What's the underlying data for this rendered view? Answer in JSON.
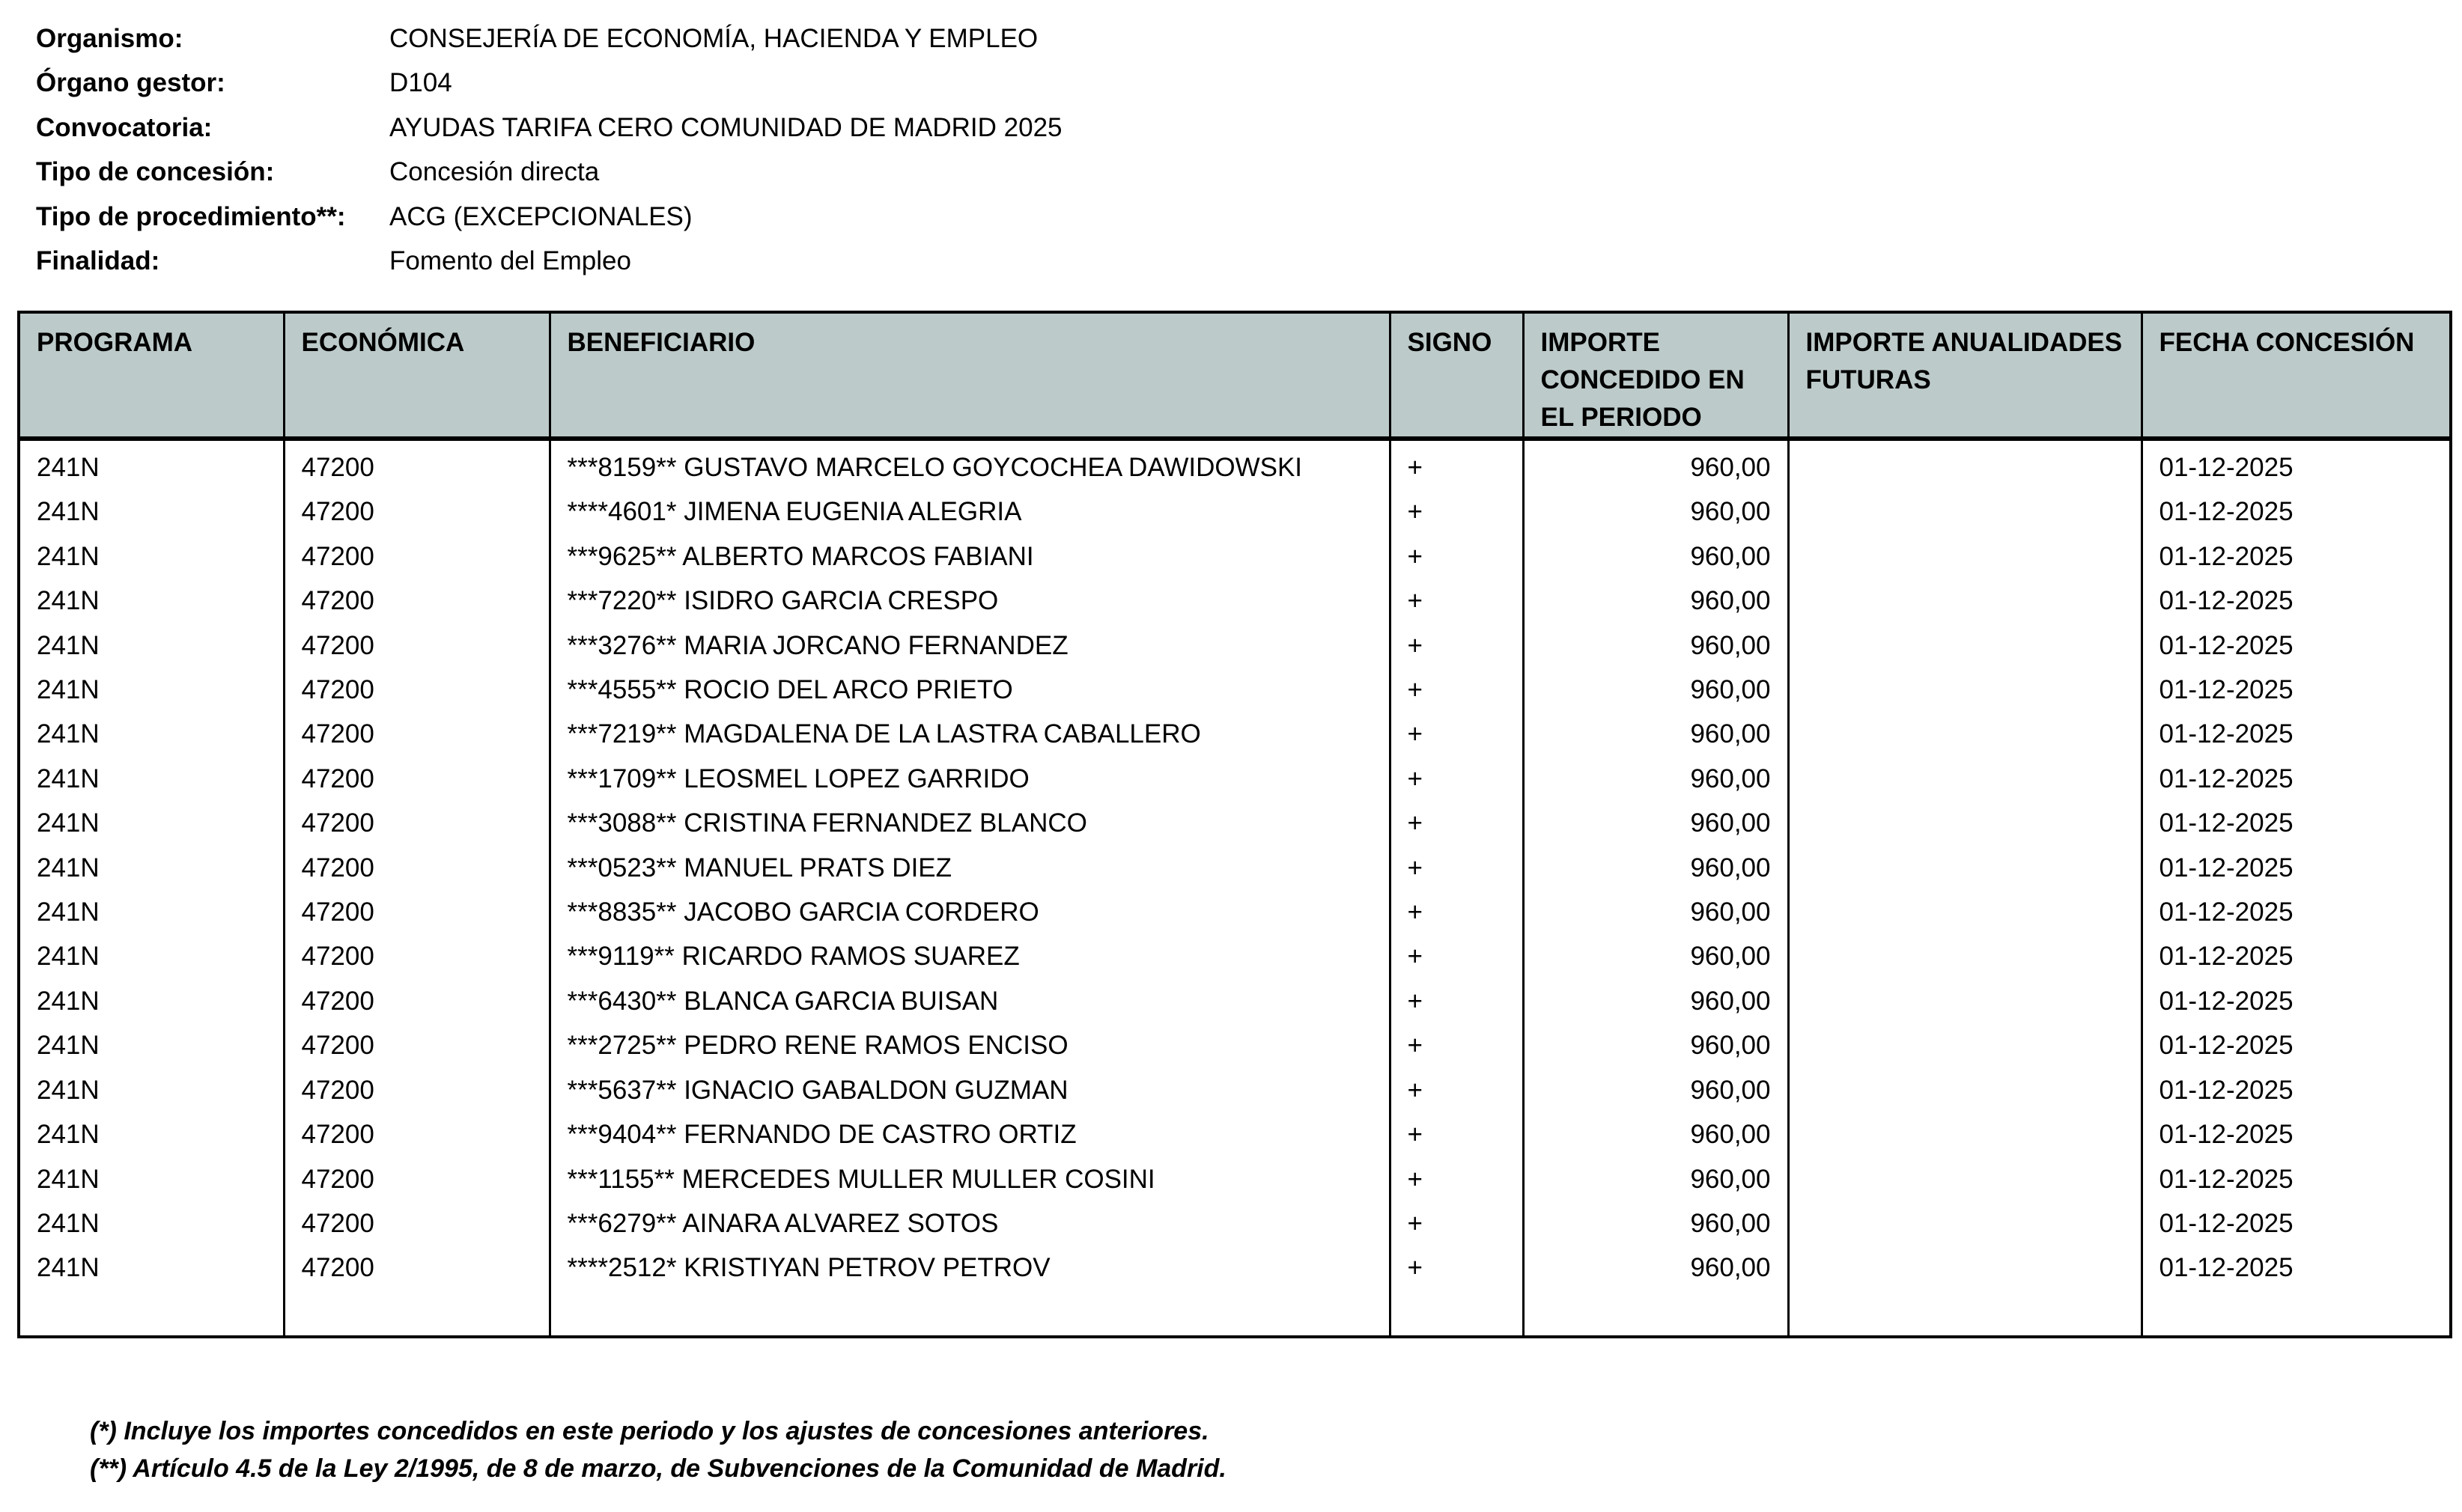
{
  "header": {
    "fields": [
      {
        "label": "Organismo:",
        "value": "CONSEJERÍA DE ECONOMÍA, HACIENDA Y EMPLEO"
      },
      {
        "label": "Órgano gestor:",
        "value": "D104"
      },
      {
        "label": "Convocatoria:",
        "value": "AYUDAS TARIFA CERO COMUNIDAD DE MADRID 2025"
      },
      {
        "label": "Tipo de concesión:",
        "value": "Concesión directa"
      },
      {
        "label": "Tipo de procedimiento**:",
        "value": "ACG (EXCEPCIONALES)"
      },
      {
        "label": "Finalidad:",
        "value": "Fomento del Empleo"
      }
    ]
  },
  "table": {
    "columns": [
      "PROGRAMA",
      "ECONÓMICA",
      "BENEFICIARIO",
      "SIGNO",
      "IMPORTE CONCEDIDO EN EL PERIODO",
      "IMPORTE ANUALIDADES FUTURAS",
      "FECHA CONCESIÓN"
    ],
    "header_bg": "#bdcaca",
    "rows": [
      [
        "241N",
        "47200",
        "***8159** GUSTAVO MARCELO GOYCOCHEA DAWIDOWSKI",
        "+",
        "960,00",
        "",
        "01-12-2025"
      ],
      [
        "241N",
        "47200",
        "****4601* JIMENA EUGENIA ALEGRIA",
        "+",
        "960,00",
        "",
        "01-12-2025"
      ],
      [
        "241N",
        "47200",
        "***9625** ALBERTO MARCOS FABIANI",
        "+",
        "960,00",
        "",
        "01-12-2025"
      ],
      [
        "241N",
        "47200",
        "***7220** ISIDRO GARCIA CRESPO",
        "+",
        "960,00",
        "",
        "01-12-2025"
      ],
      [
        "241N",
        "47200",
        "***3276** MARIA JORCANO FERNANDEZ",
        "+",
        "960,00",
        "",
        "01-12-2025"
      ],
      [
        "241N",
        "47200",
        "***4555** ROCIO DEL ARCO PRIETO",
        "+",
        "960,00",
        "",
        "01-12-2025"
      ],
      [
        "241N",
        "47200",
        "***7219** MAGDALENA DE LA LASTRA CABALLERO",
        "+",
        "960,00",
        "",
        "01-12-2025"
      ],
      [
        "241N",
        "47200",
        "***1709** LEOSMEL LOPEZ GARRIDO",
        "+",
        "960,00",
        "",
        "01-12-2025"
      ],
      [
        "241N",
        "47200",
        "***3088** CRISTINA FERNANDEZ BLANCO",
        "+",
        "960,00",
        "",
        "01-12-2025"
      ],
      [
        "241N",
        "47200",
        "***0523** MANUEL PRATS DIEZ",
        "+",
        "960,00",
        "",
        "01-12-2025"
      ],
      [
        "241N",
        "47200",
        "***8835** JACOBO GARCIA CORDERO",
        "+",
        "960,00",
        "",
        "01-12-2025"
      ],
      [
        "241N",
        "47200",
        "***9119** RICARDO RAMOS SUAREZ",
        "+",
        "960,00",
        "",
        "01-12-2025"
      ],
      [
        "241N",
        "47200",
        "***6430** BLANCA GARCIA BUISAN",
        "+",
        "960,00",
        "",
        "01-12-2025"
      ],
      [
        "241N",
        "47200",
        "***2725** PEDRO RENE RAMOS ENCISO",
        "+",
        "960,00",
        "",
        "01-12-2025"
      ],
      [
        "241N",
        "47200",
        "***5637** IGNACIO GABALDON GUZMAN",
        "+",
        "960,00",
        "",
        "01-12-2025"
      ],
      [
        "241N",
        "47200",
        "***9404** FERNANDO DE CASTRO ORTIZ",
        "+",
        "960,00",
        "",
        "01-12-2025"
      ],
      [
        "241N",
        "47200",
        "***1155** MERCEDES MULLER MULLER COSINI",
        "+",
        "960,00",
        "",
        "01-12-2025"
      ],
      [
        "241N",
        "47200",
        "***6279** AINARA ALVAREZ SOTOS",
        "+",
        "960,00",
        "",
        "01-12-2025"
      ],
      [
        "241N",
        "47200",
        "****2512* KRISTIYAN PETROV PETROV",
        "+",
        "960,00",
        "",
        "01-12-2025"
      ]
    ]
  },
  "footnotes": [
    "(*) Incluye los importes concedidos en este periodo y los ajustes de concesiones anteriores.",
    "(**) Artículo 4.5 de la Ley 2/1995, de 8 de marzo, de Subvenciones de la Comunidad de Madrid."
  ]
}
